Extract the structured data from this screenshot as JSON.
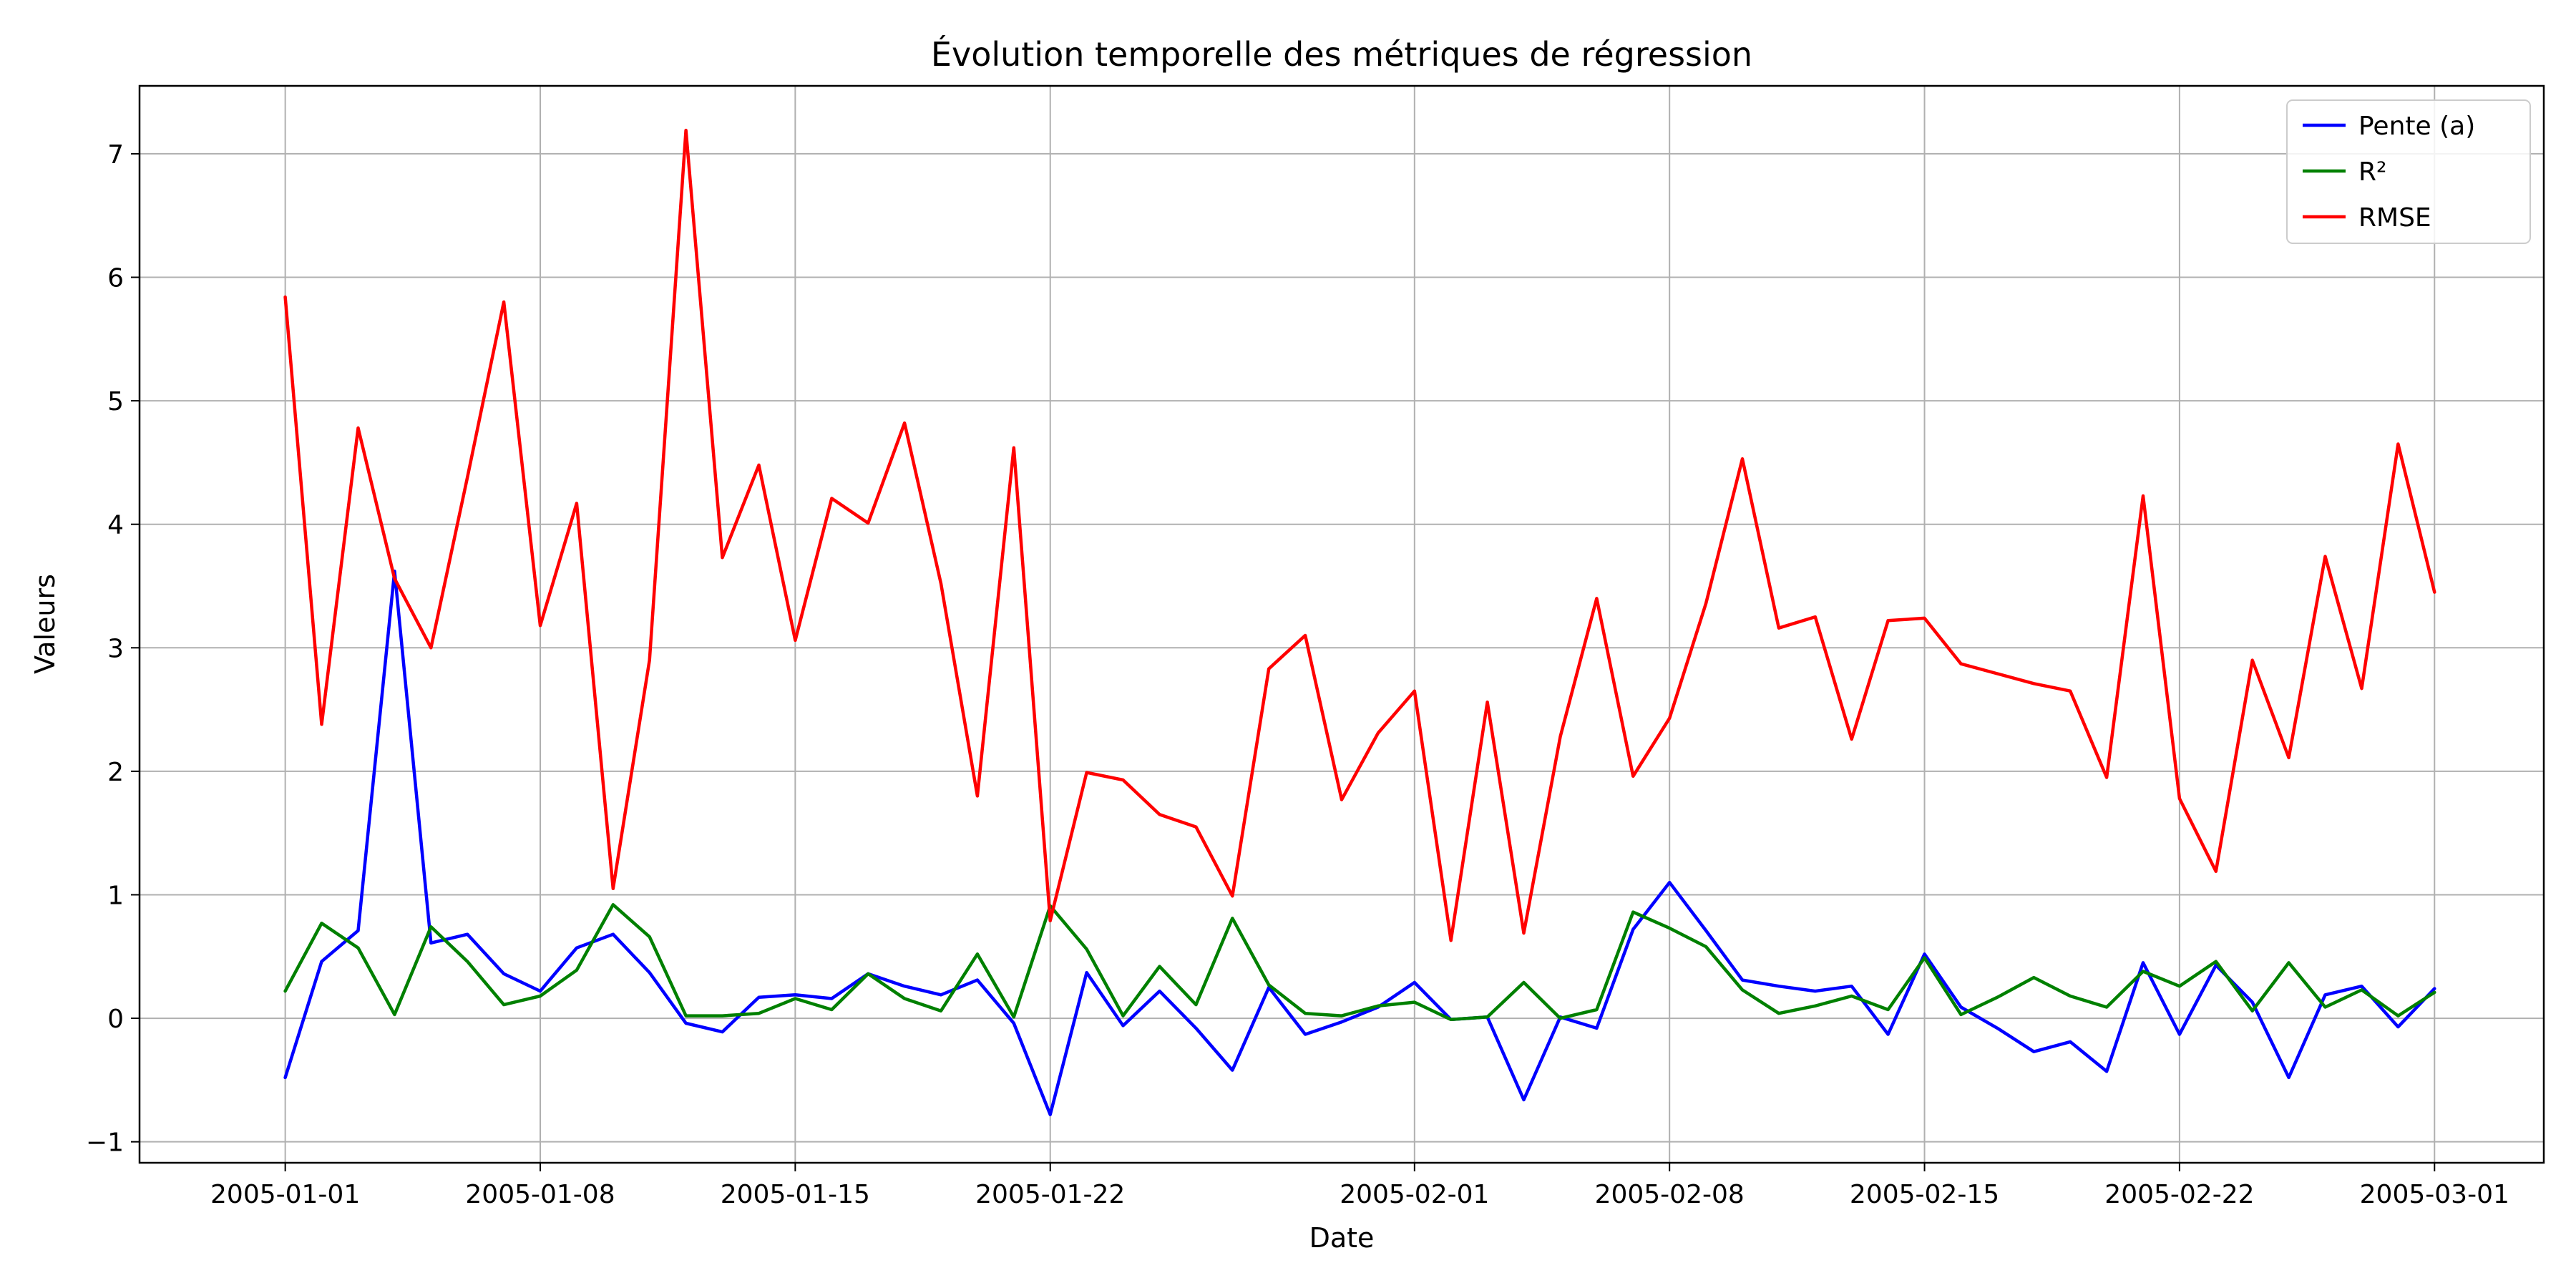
{
  "chart_data": {
    "type": "line",
    "title": "Évolution temporelle des métriques de régression",
    "xlabel": "Date",
    "ylabel": "Valeurs",
    "x_start": "2005-01-01",
    "x_end": "2005-03-01",
    "xlim": [
      "2004-12-28",
      "2005-03-04"
    ],
    "ylim": [
      -1.17,
      7.55
    ],
    "x_ticks": [
      "2005-01-01",
      "2005-01-08",
      "2005-01-15",
      "2005-01-22",
      "2005-02-01",
      "2005-02-08",
      "2005-02-15",
      "2005-02-22",
      "2005-03-01"
    ],
    "y_ticks": [
      -1,
      0,
      1,
      2,
      3,
      4,
      5,
      6,
      7
    ],
    "y_tick_labels": [
      "−1",
      "0",
      "1",
      "2",
      "3",
      "4",
      "5",
      "6",
      "7"
    ],
    "grid": true,
    "legend_position": "top-right",
    "series": [
      {
        "name": "Pente (a)",
        "color": "#0000ff",
        "values": [
          -0.48,
          0.46,
          0.71,
          3.62,
          0.61,
          0.68,
          0.36,
          0.22,
          0.57,
          0.68,
          0.37,
          -0.04,
          -0.11,
          0.17,
          0.19,
          0.16,
          0.36,
          0.26,
          0.19,
          0.31,
          -0.04,
          -0.78,
          0.37,
          -0.06,
          0.22,
          -0.08,
          -0.42,
          0.25,
          -0.13,
          -0.03,
          0.09,
          0.29,
          -0.01,
          0.01,
          -0.66,
          0.01,
          -0.08,
          0.72,
          1.1,
          0.71,
          0.31,
          0.26,
          0.22,
          0.26,
          -0.13,
          0.52,
          0.09,
          -0.08,
          -0.27,
          -0.19,
          -0.43,
          0.45,
          -0.13,
          0.43,
          0.13,
          -0.48,
          0.19,
          0.26,
          -0.07,
          0.24
        ]
      },
      {
        "name": "R²",
        "color": "#008000",
        "values": [
          0.22,
          0.77,
          0.57,
          0.03,
          0.74,
          0.46,
          0.11,
          0.18,
          0.39,
          0.92,
          0.66,
          0.02,
          0.02,
          0.04,
          0.16,
          0.07,
          0.36,
          0.16,
          0.06,
          0.52,
          0.01,
          0.91,
          0.56,
          0.02,
          0.42,
          0.11,
          0.81,
          0.27,
          0.04,
          0.02,
          0.1,
          0.13,
          -0.01,
          0.01,
          0.29,
          0.0,
          0.07,
          0.86,
          0.73,
          0.58,
          0.23,
          0.04,
          0.1,
          0.18,
          0.07,
          0.49,
          0.03,
          0.17,
          0.33,
          0.18,
          0.09,
          0.38,
          0.26,
          0.46,
          0.06,
          0.45,
          0.09,
          0.23,
          0.02,
          0.21
        ]
      },
      {
        "name": "RMSE",
        "color": "#ff0000",
        "values": [
          5.84,
          2.38,
          4.78,
          3.56,
          3.0,
          4.38,
          5.8,
          3.18,
          4.17,
          1.05,
          2.9,
          7.19,
          3.73,
          4.48,
          3.06,
          4.21,
          4.01,
          4.82,
          3.52,
          1.8,
          4.62,
          0.79,
          1.99,
          1.93,
          1.65,
          1.55,
          0.99,
          2.83,
          3.1,
          1.77,
          2.31,
          2.65,
          0.63,
          2.56,
          0.69,
          2.28,
          3.4,
          1.96,
          2.43,
          3.36,
          4.53,
          3.16,
          3.25,
          2.26,
          3.22,
          3.24,
          2.87,
          2.79,
          2.71,
          2.65,
          1.95,
          4.23,
          1.78,
          1.19,
          2.9,
          2.11,
          3.74,
          2.67,
          4.65,
          3.45
        ]
      }
    ]
  }
}
